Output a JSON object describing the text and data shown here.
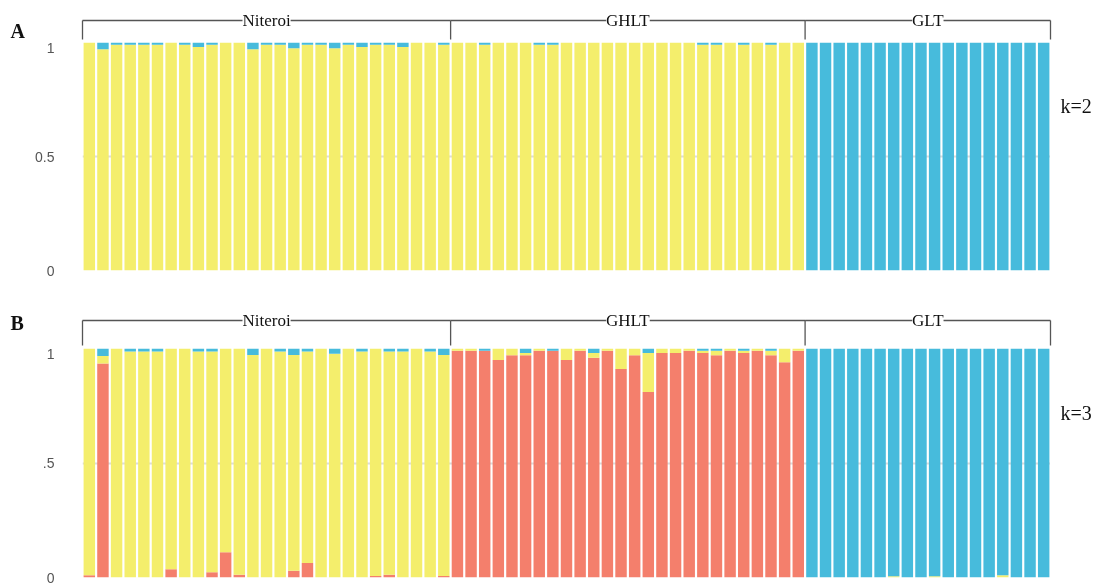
{
  "chart_data": [
    {
      "type": "bar",
      "title": "A",
      "y2label": "k=2",
      "stacked": true,
      "grid": "y",
      "tick_labels": "y",
      "annotations": [
        "Niteroi",
        "GHLT",
        "GLT"
      ],
      "categories": [
        null,
        null,
        null,
        null,
        null,
        null,
        null,
        null,
        null,
        null,
        null,
        null,
        null,
        null,
        null,
        null,
        null,
        null,
        null,
        null,
        null,
        null,
        null,
        null,
        null,
        null,
        null,
        null,
        null,
        null,
        null,
        null,
        null,
        null,
        null,
        null,
        null,
        null,
        null,
        null,
        null,
        null,
        null,
        null,
        null,
        null,
        null,
        null,
        null,
        null,
        null,
        null,
        null,
        null,
        null,
        null,
        null,
        null,
        null,
        null,
        null,
        null,
        null,
        null,
        null,
        null,
        null,
        null,
        null,
        null,
        null
      ],
      "ylim": [
        0,
        1
      ],
      "yticks": [
        0,
        0.5,
        1
      ],
      "series": [
        {
          "color": "#f4ee6c",
          "values": [
            1,
            0.97,
            0.99,
            0.99,
            0.99,
            0.99,
            1,
            0.99,
            0.98,
            0.99,
            1,
            1,
            0.97,
            0.99,
            0.99,
            0.975,
            0.99,
            0.99,
            0.975,
            0.99,
            0.98,
            0.99,
            0.99,
            0.98,
            1,
            1,
            0.99,
            1,
            1,
            0.99,
            1,
            1,
            1,
            0.99,
            0.99,
            1,
            1,
            1,
            1,
            1,
            1,
            1,
            1,
            1,
            1,
            0.99,
            0.99,
            1,
            0.99,
            1,
            0.99,
            1,
            1,
            0,
            0,
            0,
            0,
            0,
            0,
            0,
            0,
            0,
            0,
            0,
            0,
            0,
            0,
            0,
            0,
            0,
            0
          ]
        },
        {
          "color": "#47bbdc",
          "values": [
            0,
            0.03,
            0.01,
            0.01,
            0.01,
            0.01,
            0,
            0.01,
            0.02,
            0.01,
            0,
            0,
            0.03,
            0.01,
            0.01,
            0.025,
            0.01,
            0.01,
            0.025,
            0.01,
            0.02,
            0.01,
            0.01,
            0.02,
            0,
            0,
            0.01,
            0,
            0,
            0.01,
            0,
            0,
            0,
            0.01,
            0.01,
            0,
            0,
            0,
            0,
            0,
            0,
            0,
            0,
            0,
            0,
            0.01,
            0.01,
            0,
            0.01,
            0,
            0.01,
            0,
            0,
            1,
            1,
            1,
            1,
            1,
            1,
            1,
            1,
            1,
            1,
            1,
            1,
            1,
            1,
            1,
            1,
            1,
            1
          ]
        }
      ]
    },
    {
      "type": "bar",
      "title": "B",
      "y2label": "k=3",
      "stacked": true,
      "grid": "y",
      "tick_labels": "y",
      "annotations": [
        "Niteroi",
        "GHLT",
        "GLT"
      ],
      "categories": [
        null,
        null,
        null,
        null,
        null,
        null,
        null,
        null,
        null,
        null,
        null,
        null,
        null,
        null,
        null,
        null,
        null,
        null,
        null,
        null,
        null,
        null,
        null,
        null,
        null,
        null,
        null,
        null,
        null,
        null,
        null,
        null,
        null,
        null,
        null,
        null,
        null,
        null,
        null,
        null,
        null,
        null,
        null,
        null,
        null,
        null,
        null,
        null,
        null,
        null,
        null,
        null,
        null,
        null,
        null,
        null,
        null,
        null,
        null,
        null,
        null,
        null,
        null,
        null,
        null,
        null,
        null,
        null,
        null,
        null,
        null
      ],
      "ylim": [
        0,
        1
      ],
      "yticks": [
        0,
        {
          "value": 0.5,
          "label": ".5"
        },
        1
      ],
      "series": [
        {
          "color": "#f47f6c",
          "values": [
            0.01,
            0.935,
            0,
            0,
            0,
            0,
            0.036,
            0,
            0,
            0.023,
            0.11,
            0.012,
            0,
            0,
            0,
            0.03,
            0.063,
            0,
            0,
            0,
            0,
            0.007,
            0.012,
            0,
            0,
            0,
            0.007,
            0.99,
            0.99,
            0.99,
            0.95,
            0.97,
            0.97,
            0.99,
            0.99,
            0.95,
            0.99,
            0.96,
            0.99,
            0.91,
            0.97,
            0.81,
            0.98,
            0.98,
            0.99,
            0.98,
            0.97,
            0.99,
            0.98,
            0.99,
            0.97,
            0.94,
            0.99,
            0,
            0,
            0,
            0,
            0,
            0,
            0,
            0,
            0,
            0,
            0,
            0,
            0,
            0,
            0,
            0,
            0,
            0
          ]
        },
        {
          "color": "#f4ee6c",
          "values": [
            0.99,
            0.032,
            1,
            0.987,
            0.987,
            0.987,
            0.964,
            1,
            0.987,
            0.964,
            0.89,
            0.988,
            0.972,
            1,
            0.987,
            0.942,
            0.924,
            1,
            0.977,
            1,
            0.987,
            0.993,
            0.975,
            0.987,
            1,
            0.987,
            0.965,
            0.01,
            0.01,
            0,
            0.05,
            0.03,
            0.01,
            0.01,
            0,
            0.05,
            0.01,
            0.02,
            0.01,
            0.09,
            0.03,
            0.17,
            0.02,
            0.02,
            0.01,
            0.01,
            0.02,
            0.01,
            0.01,
            0.01,
            0.02,
            0.06,
            0.01,
            0,
            0,
            0,
            0,
            0,
            0,
            0.005,
            0,
            0,
            0.005,
            0,
            0,
            0,
            0,
            0.01,
            0,
            0,
            0
          ]
        },
        {
          "color": "#47bbdc",
          "values": [
            0,
            0.033,
            0,
            0.013,
            0.013,
            0.013,
            0,
            0,
            0.013,
            0.013,
            0,
            0,
            0.028,
            0,
            0.013,
            0.028,
            0.013,
            0,
            0.023,
            0,
            0.013,
            0,
            0.013,
            0.013,
            0,
            0.013,
            0.028,
            0,
            0,
            0.01,
            0,
            0,
            0.02,
            0,
            0.01,
            0,
            0,
            0.02,
            0,
            0,
            0,
            0.02,
            0,
            0,
            0,
            0.01,
            0.01,
            0,
            0.01,
            0,
            0.01,
            0,
            0,
            1,
            1,
            1,
            1,
            1,
            1,
            0.995,
            1,
            1,
            0.995,
            1,
            1,
            1,
            1,
            0.99,
            1,
            1,
            1
          ]
        }
      ]
    }
  ]
}
